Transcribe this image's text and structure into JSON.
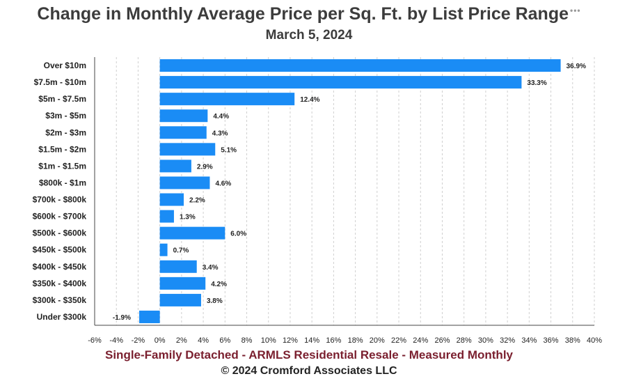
{
  "header": {
    "title": "Change in Monthly Average Price per Sq. Ft. by List Price Range",
    "dots": "•••",
    "subtitle": "March 5, 2024"
  },
  "footer": {
    "line1": "Single-Family Detached - ARMLS Residential Resale - Measured Monthly",
    "line2": "© 2024 Cromford Associates LLC"
  },
  "chart_data": {
    "type": "bar",
    "orientation": "horizontal",
    "categories": [
      "Over $10m",
      "$7.5m - $10m",
      "$5m - $7.5m",
      "$3m - $5m",
      "$2m - $3m",
      "$1.5m - $2m",
      "$1m - $1.5m",
      "$800k - $1m",
      "$700k - $800k",
      "$600k - $700k",
      "$500k - $600k",
      "$450k - $500k",
      "$400k - $450k",
      "$350k - $400k",
      "$300k - $350k",
      "Under $300k"
    ],
    "values": [
      36.9,
      33.3,
      12.4,
      4.4,
      4.3,
      5.1,
      2.9,
      4.6,
      2.2,
      1.3,
      6.0,
      0.7,
      3.4,
      4.2,
      3.8,
      -1.9
    ],
    "value_labels": [
      "36.9%",
      "33.3%",
      "12.4%",
      "4.4%",
      "4.3%",
      "5.1%",
      "2.9%",
      "4.6%",
      "2.2%",
      "1.3%",
      "6.0%",
      "0.7%",
      "3.4%",
      "4.2%",
      "3.8%",
      "-1.9%"
    ],
    "xlim": [
      -6,
      40
    ],
    "xticks": [
      -6,
      -4,
      -2,
      0,
      2,
      4,
      6,
      8,
      10,
      12,
      14,
      16,
      18,
      20,
      22,
      24,
      26,
      28,
      30,
      32,
      34,
      36,
      38,
      40
    ],
    "xtick_labels": [
      "-6%",
      "-4%",
      "-2%",
      "0%",
      "2%",
      "4%",
      "6%",
      "8%",
      "10%",
      "12%",
      "14%",
      "16%",
      "18%",
      "20%",
      "22%",
      "24%",
      "26%",
      "28%",
      "30%",
      "32%",
      "34%",
      "36%",
      "38%",
      "40%"
    ],
    "grid": "vertical-dashed",
    "legend": "none",
    "colors": {
      "bar": "#1a8cf5",
      "grid": "#cfcfcf",
      "axis": "#444444"
    }
  }
}
